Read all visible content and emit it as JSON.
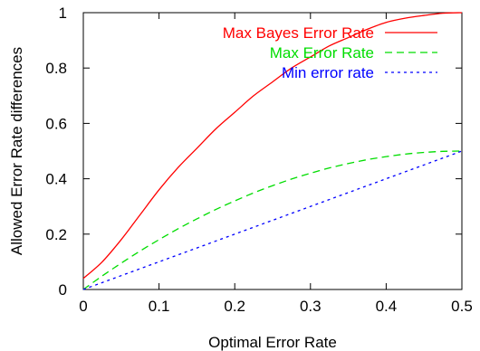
{
  "chart_data": {
    "type": "line",
    "xlabel": "Optimal Error Rate",
    "ylabel": "Allowed Error Rate differences",
    "xlim": [
      0,
      0.5
    ],
    "ylim": [
      0,
      1
    ],
    "xticks": [
      "0",
      "0.1",
      "0.2",
      "0.3",
      "0.4",
      "0.5"
    ],
    "yticks": [
      "0",
      "0.2",
      "0.4",
      "0.6",
      "0.8",
      "1"
    ],
    "grid": false,
    "legend_position": "top-right",
    "x": [
      0,
      0.025,
      0.05,
      0.075,
      0.1,
      0.125,
      0.15,
      0.175,
      0.2,
      0.225,
      0.25,
      0.275,
      0.3,
      0.325,
      0.35,
      0.375,
      0.4,
      0.425,
      0.45,
      0.475,
      0.5
    ],
    "series": [
      {
        "name": "Max Bayes Error Rate",
        "color": "#ff0000",
        "dash": "solid",
        "values": [
          0.04,
          0.1,
          0.18,
          0.27,
          0.36,
          0.44,
          0.51,
          0.58,
          0.64,
          0.7,
          0.75,
          0.8,
          0.84,
          0.88,
          0.91,
          0.94,
          0.965,
          0.98,
          0.99,
          0.998,
          1.0
        ]
      },
      {
        "name": "Max Error Rate",
        "color": "#00dd00",
        "dash": "long",
        "values": [
          0.0,
          0.049,
          0.095,
          0.139,
          0.18,
          0.219,
          0.255,
          0.289,
          0.32,
          0.349,
          0.375,
          0.399,
          0.42,
          0.439,
          0.455,
          0.469,
          0.48,
          0.489,
          0.495,
          0.499,
          0.5
        ]
      },
      {
        "name": "Min error rate",
        "color": "#0000ff",
        "dash": "short",
        "values": [
          0.0,
          0.025,
          0.05,
          0.075,
          0.1,
          0.125,
          0.15,
          0.175,
          0.2,
          0.225,
          0.25,
          0.275,
          0.3,
          0.325,
          0.35,
          0.375,
          0.4,
          0.425,
          0.45,
          0.475,
          0.5
        ]
      }
    ]
  }
}
